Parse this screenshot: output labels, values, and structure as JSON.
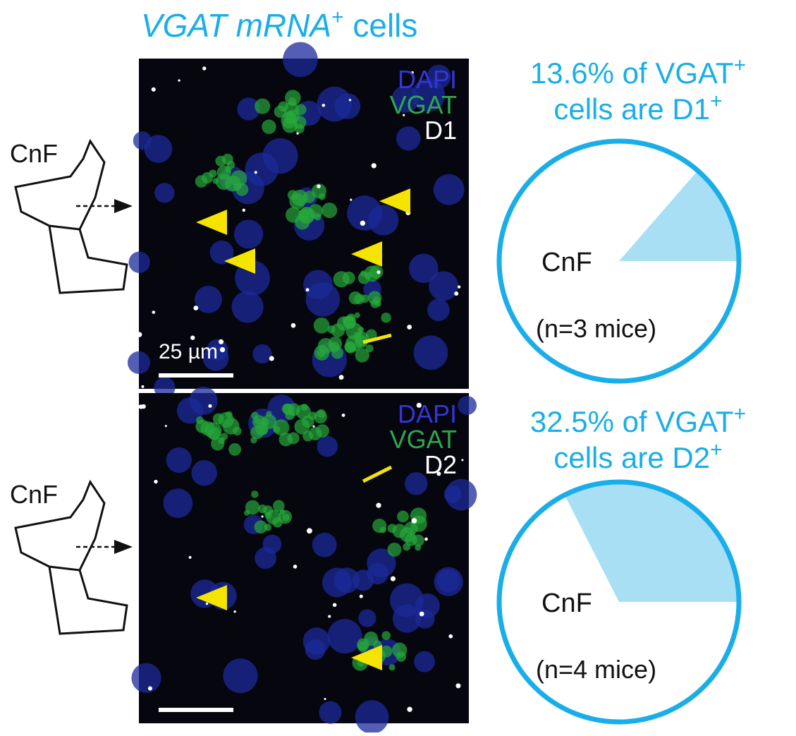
{
  "title": {
    "italic": "VGAT mRNA",
    "sup": "+",
    "rest": " cells"
  },
  "panels": [
    {
      "channels": [
        "DAPI",
        "VGAT",
        "D1"
      ],
      "region_label": "CnF",
      "scale_label": "25 µm"
    },
    {
      "channels": [
        "DAPI",
        "VGAT",
        "D2"
      ],
      "region_label": "CnF"
    }
  ],
  "chart_data": [
    {
      "type": "pie",
      "title_parts": [
        " of VGAT",
        "+",
        "cells are D1",
        "+"
      ],
      "values": [
        13.6
      ],
      "value_labels": [
        "13.6%"
      ],
      "color": "#a8dff5",
      "outline": "#1aaee8",
      "center_label": "CnF",
      "note": "(n=3 mice)"
    },
    {
      "type": "pie",
      "title_parts": [
        " of VGAT",
        "+",
        "cells are D2",
        "+"
      ],
      "values": [
        32.5
      ],
      "value_labels": [
        "32.5%"
      ],
      "color": "#a8dff5",
      "outline": "#1aaee8",
      "center_label": "CnF",
      "note": "(n=4 mice)"
    }
  ]
}
